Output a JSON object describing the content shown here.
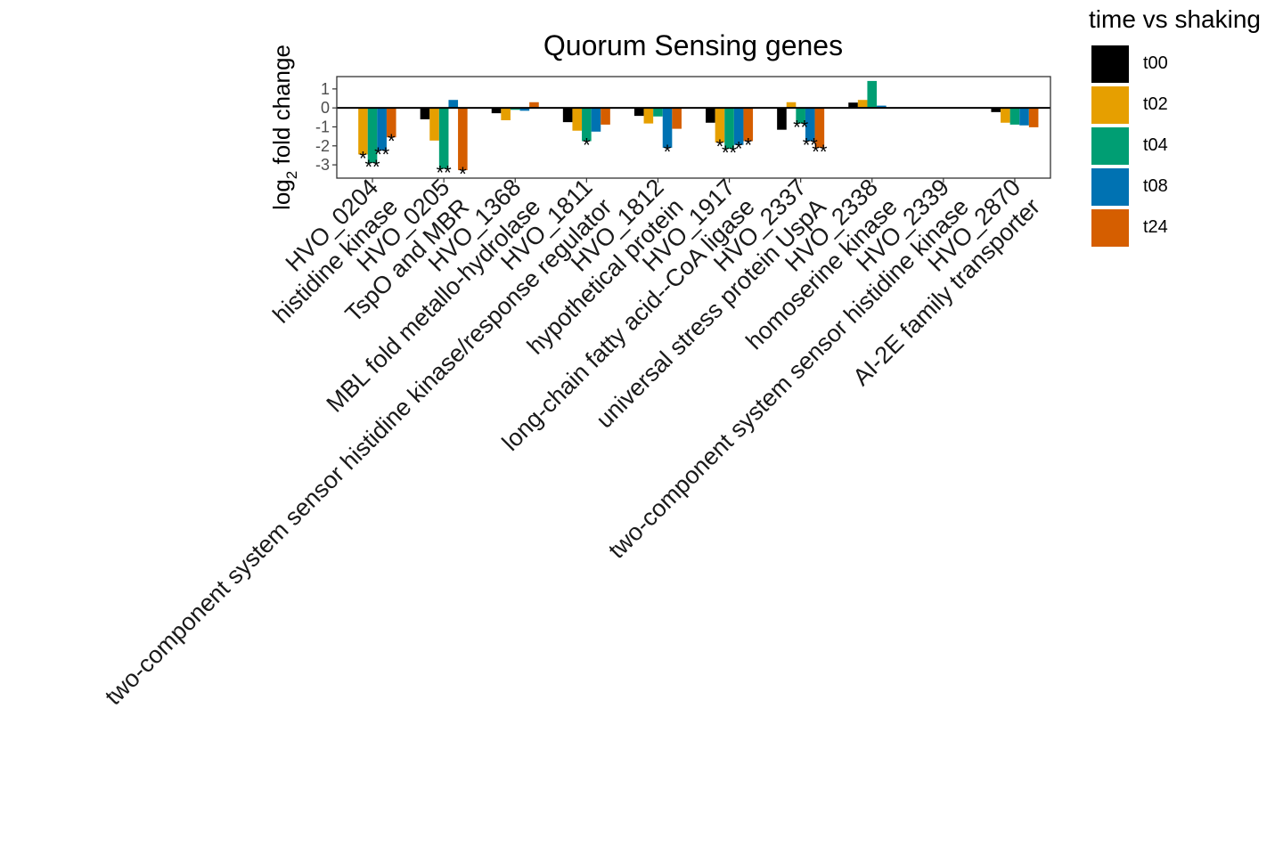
{
  "chart_data": {
    "type": "bar",
    "title": "Quorum Sensing genes",
    "ylabel_base": "log",
    "ylabel_sub": "2",
    "ylabel_rest": " fold change",
    "ylim": [
      -3.7,
      1.65
    ],
    "yticks": [
      1,
      0,
      -1,
      -2,
      -3
    ],
    "grid": false,
    "legend": {
      "title": "time vs shaking",
      "placement": "right"
    },
    "categories": [
      "HVO_0204\nhistidine kinase",
      "HVO_0205\nTspO and MBR",
      "HVO_1368\nMBL fold metallo-hydrolase",
      "HVO_1811\ntwo-component system sensor histidine kinase/response regulator",
      "HVO_1812\nhypothetical protein",
      "HVO_1917\nlong-chain fatty acid--CoA ligase",
      "HVO_2337\nuniversal stress protein UspA",
      "HVO_2338\nhomoserine kinase",
      "HVO_2339\ntwo-component system sensor histidine kinase",
      "HVO_2870\nAI-2E family transporter"
    ],
    "series": [
      {
        "name": "t00",
        "color": "#000000",
        "values": [
          0,
          -0.6,
          -0.28,
          -0.75,
          -0.42,
          -0.78,
          -1.15,
          0.28,
          0,
          -0.22
        ],
        "stars": [
          "",
          "",
          "",
          "",
          "",
          "",
          "",
          "",
          "",
          ""
        ]
      },
      {
        "name": "t02",
        "color": "#E69F00",
        "values": [
          -2.45,
          -1.72,
          -0.65,
          -1.2,
          -0.82,
          -1.82,
          0.3,
          0.42,
          0,
          -0.78
        ],
        "stars": [
          "*",
          "",
          "",
          "",
          "",
          "*",
          "",
          "",
          "",
          ""
        ]
      },
      {
        "name": "t04",
        "color": "#009E73",
        "values": [
          -2.9,
          -3.2,
          -0.1,
          -1.75,
          -0.45,
          -2.15,
          -0.82,
          1.42,
          0,
          -0.88
        ],
        "stars": [
          "**",
          "**",
          "",
          "*",
          "",
          "**",
          "**",
          "",
          "",
          ""
        ]
      },
      {
        "name": "t08",
        "color": "#0072B2",
        "values": [
          -2.25,
          0.42,
          -0.15,
          -1.25,
          -2.1,
          -1.95,
          -1.75,
          0.12,
          0,
          -0.92
        ],
        "stars": [
          "**",
          "",
          "",
          "",
          "*",
          "*",
          "**",
          "",
          "",
          ""
        ]
      },
      {
        "name": "t24",
        "color": "#D55E00",
        "values": [
          -1.55,
          -3.28,
          0.3,
          -0.88,
          -1.1,
          -1.75,
          -2.1,
          -0.04,
          0,
          -1.02
        ],
        "stars": [
          "*",
          "*",
          "",
          "",
          "",
          "*",
          "**",
          "",
          "",
          ""
        ]
      }
    ]
  }
}
